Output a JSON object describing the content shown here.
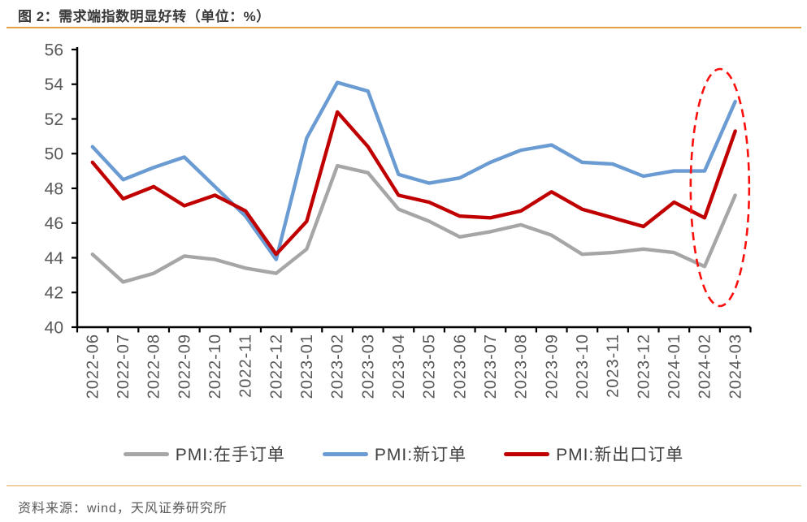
{
  "title": "图 2：需求端指数明显好转（单位：%）",
  "source": "资料来源：wind，天风证券研究所",
  "colors": {
    "accent_rule": "#E2A13F",
    "axis": "#000000",
    "tick_label": "#595959",
    "title_text": "#3A3A3A",
    "legend_text": "#404040",
    "annotation_red": "#FA0F0C"
  },
  "chart_data": {
    "type": "line",
    "unit": "%",
    "x": [
      "2022-06",
      "2022-07",
      "2022-08",
      "2022-09",
      "2022-10",
      "2022-11",
      "2022-12",
      "2023-01",
      "2023-02",
      "2023-03",
      "2023-04",
      "2023-05",
      "2023-06",
      "2023-07",
      "2023-08",
      "2023-09",
      "2023-10",
      "2023-11",
      "2023-12",
      "2024-01",
      "2024-02",
      "2024-03"
    ],
    "ylim": [
      40,
      56
    ],
    "yticks": [
      40,
      42,
      44,
      46,
      48,
      50,
      52,
      54,
      56
    ],
    "grid": false,
    "legend_position": "bottom",
    "series": [
      {
        "name": "PMI:在手订单",
        "color": "#A6A6A6",
        "values": [
          44.2,
          42.6,
          43.1,
          44.1,
          43.9,
          43.4,
          43.1,
          44.5,
          49.3,
          48.9,
          46.8,
          46.1,
          45.2,
          45.5,
          45.9,
          45.3,
          44.2,
          44.3,
          44.5,
          44.3,
          43.5,
          47.6
        ]
      },
      {
        "name": "PMI:新订单",
        "color": "#6A9BD2",
        "values": [
          50.4,
          48.5,
          49.2,
          49.8,
          48.1,
          46.4,
          43.9,
          50.9,
          54.1,
          53.6,
          48.8,
          48.3,
          48.6,
          49.5,
          50.2,
          50.5,
          49.5,
          49.4,
          48.7,
          49.0,
          49.0,
          53.0
        ]
      },
      {
        "name": "PMI:新出口订单",
        "color": "#C00000",
        "values": [
          49.5,
          47.4,
          48.1,
          47.0,
          47.6,
          46.7,
          44.2,
          46.1,
          52.4,
          50.4,
          47.6,
          47.2,
          46.4,
          46.3,
          46.7,
          47.8,
          46.8,
          46.3,
          45.8,
          47.2,
          46.3,
          51.3
        ]
      }
    ],
    "annotation": {
      "shape": "dashed-ellipse",
      "color": "#FA0F0C",
      "months": [
        "2024-02",
        "2024-03"
      ]
    }
  }
}
